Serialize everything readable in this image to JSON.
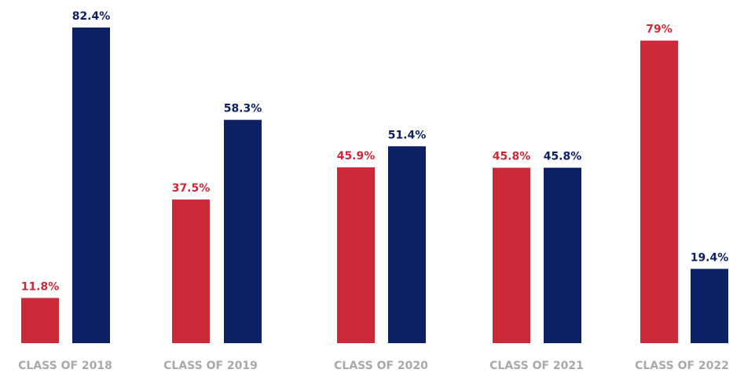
{
  "chart_data": {
    "type": "bar",
    "categories": [
      "CLASS OF 2018",
      "CLASS OF 2019",
      "CLASS OF 2020",
      "CLASS OF 2021",
      "CLASS OF 2022"
    ],
    "series": [
      {
        "color": "#cc2939",
        "values": [
          11.8,
          37.5,
          45.9,
          45.8,
          79
        ],
        "value_labels": [
          "11.8%",
          "37.5%",
          "45.9%",
          "45.8%",
          "79%"
        ]
      },
      {
        "color": "#0c2164",
        "values": [
          82.4,
          58.3,
          51.4,
          45.8,
          19.4
        ],
        "value_labels": [
          "82.4%",
          "58.3%",
          "51.4%",
          "45.8%",
          "19.4%"
        ]
      }
    ],
    "ylim": [
      0,
      90
    ]
  }
}
